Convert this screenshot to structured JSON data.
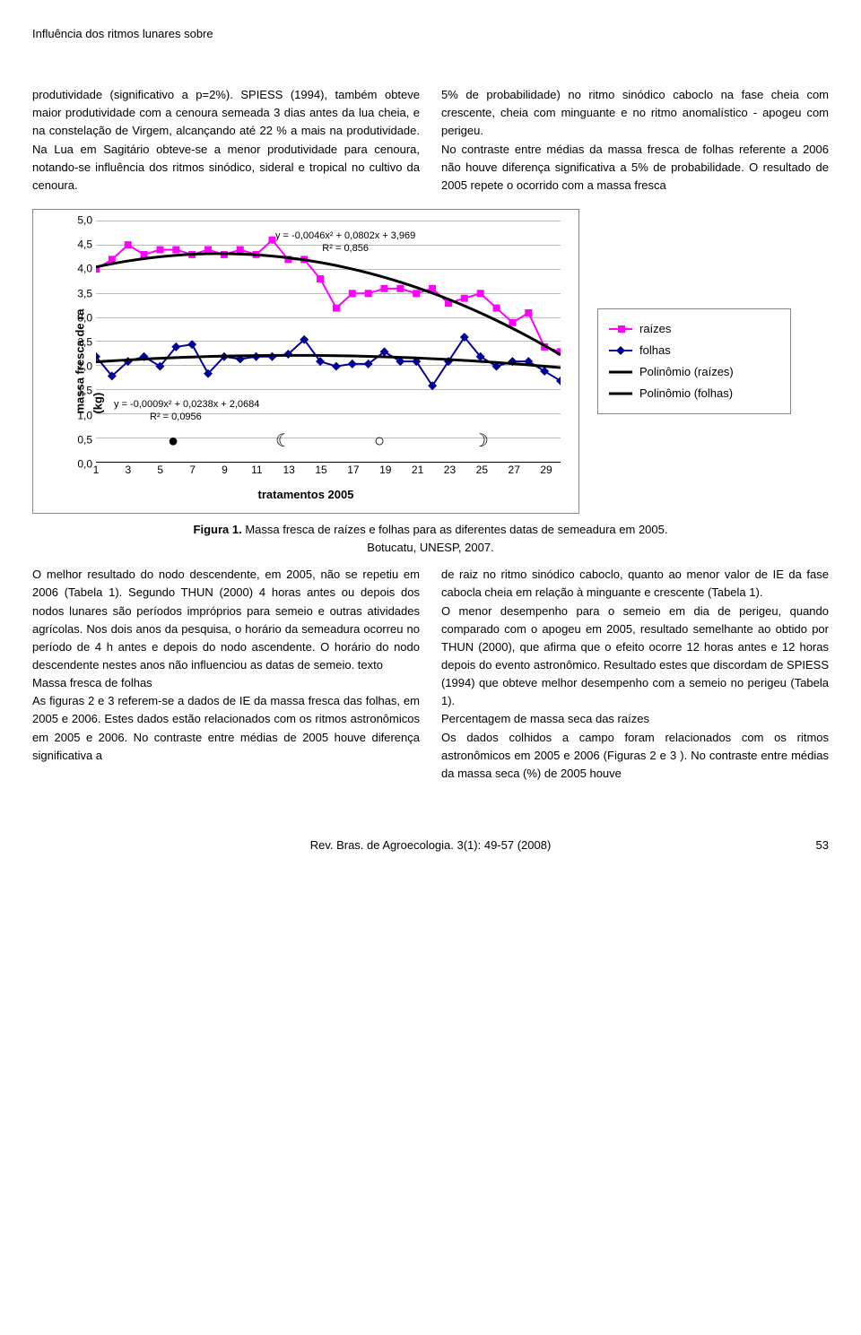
{
  "running_head": "Influência dos ritmos lunares sobre",
  "para1": "produtividade (significativo a p=2%). SPIESS (1994), também obteve maior produtividade com a cenoura semeada 3 dias antes da lua cheia, e na constelação de Virgem, alcançando até 22 % a mais na produtividade. Na Lua em Sagitário obteve-se a menor produtividade para cenoura, notando-se influência dos ritmos sinódico, sideral e tropical no cultivo da cenoura.",
  "para2": "5% de probabilidade) no ritmo sinódico caboclo na fase cheia com crescente, cheia com minguante e no ritmo anomalístico - apogeu com perigeu.",
  "para3": "No contraste entre médias da massa fresca de folhas referente a 2006 não houve diferença significativa a 5% de probabilidade. O resultado de 2005 repete o ocorrido com a massa fresca",
  "chart": {
    "y_label": "massa fresca de ra\n(kg)",
    "x_label": "tratamentos 2005",
    "y_ticks": [
      "0,0",
      "0,5",
      "1,0",
      "1,5",
      "2,0",
      "2,5",
      "3,0",
      "3,5",
      "4,0",
      "4,5",
      "5,0"
    ],
    "x_ticks": [
      1,
      3,
      5,
      7,
      9,
      11,
      13,
      15,
      17,
      19,
      21,
      23,
      25,
      27,
      29
    ],
    "ylim": [
      0,
      5
    ],
    "xlim": [
      1,
      30
    ],
    "series": {
      "raizes": {
        "color": "#ff00ff",
        "marker": "square",
        "values": [
          4.0,
          4.2,
          4.5,
          4.3,
          4.4,
          4.4,
          4.3,
          4.4,
          4.3,
          4.4,
          4.3,
          4.6,
          4.2,
          4.2,
          3.8,
          3.2,
          3.5,
          3.5,
          3.6,
          3.6,
          3.5,
          3.6,
          3.3,
          3.4,
          3.5,
          3.2,
          2.9,
          3.1,
          2.4,
          2.3
        ]
      },
      "folhas": {
        "color": "#000099",
        "marker": "diamond",
        "values": [
          2.2,
          1.8,
          2.1,
          2.2,
          2.0,
          2.4,
          2.45,
          1.85,
          2.2,
          2.15,
          2.2,
          2.2,
          2.25,
          2.55,
          2.1,
          2.0,
          2.05,
          2.05,
          2.3,
          2.1,
          2.1,
          1.6,
          2.1,
          2.6,
          2.2,
          2.0,
          2.1,
          2.1,
          1.9,
          1.7
        ]
      }
    },
    "trend_color": "#000000",
    "eqn1": "y = -0,0046x² + 0,0802x + 3,969",
    "r2_1": "R² = 0,856",
    "eqn2": "y = -0,0009x² + 0,0238x + 2,0684",
    "r2_2": "R² = 0,0956",
    "moons": [
      "●",
      "☾",
      "○",
      "☽"
    ],
    "background": "#ffffff",
    "grid_color": "#bbbbbb"
  },
  "legend": {
    "raizes": "raízes",
    "folhas": "folhas",
    "poly_raizes": "Polinômio (raízes)",
    "poly_folhas": "Polinômio (folhas)"
  },
  "fig_caption_lead": "Figura 1.",
  "fig_caption": " Massa fresca de raízes e folhas para as diferentes datas de semeadura em 2005.",
  "fig_caption2": "Botucatu, UNESP, 2007.",
  "para_lower1": "O melhor resultado do nodo descendente, em 2005, não se repetiu em 2006 (Tabela 1). Segundo THUN (2000) 4 horas antes ou depois dos nodos lunares são períodos impróprios para semeio e outras atividades agrícolas. Nos dois anos da pesquisa, o horário da semeadura ocorreu no período de 4 h antes e depois do nodo ascendente. O horário do nodo descendente nestes anos não influenciou as datas de semeio. texto",
  "heading_mf": "Massa fresca de folhas",
  "para_mf": "As figuras 2 e 3 referem-se a dados de IE da massa fresca das folhas, em 2005 e 2006. Estes dados estão relacionados com os ritmos astronômicos em 2005 e 2006. No contraste entre médias de 2005 houve diferença significativa a",
  "para_lower2a": "de raiz no ritmo sinódico caboclo, quanto ao menor valor de IE da fase cabocla cheia em relação à minguante e crescente (Tabela 1).",
  "para_lower2b": "O menor desempenho para o semeio em dia de perigeu, quando comparado com o apogeu em 2005, resultado semelhante ao obtido por THUN (2000), que afirma que o efeito ocorre 12 horas antes e 12 horas depois do evento astronômico. Resultado estes que discordam de SPIESS (1994) que obteve melhor desempenho com a semeio no perigeu (Tabela 1).",
  "heading_pct": "Percentagem de massa seca das raízes",
  "para_pct": "Os dados colhidos a campo foram relacionados com os ritmos astronômicos em 2005 e 2006 (Figuras 2 e 3 ). No contraste entre médias da massa seca (%) de 2005 houve",
  "footer_text": "Rev. Bras. de Agroecologia. 3(1): 49-57 (2008)",
  "page_no": "53"
}
